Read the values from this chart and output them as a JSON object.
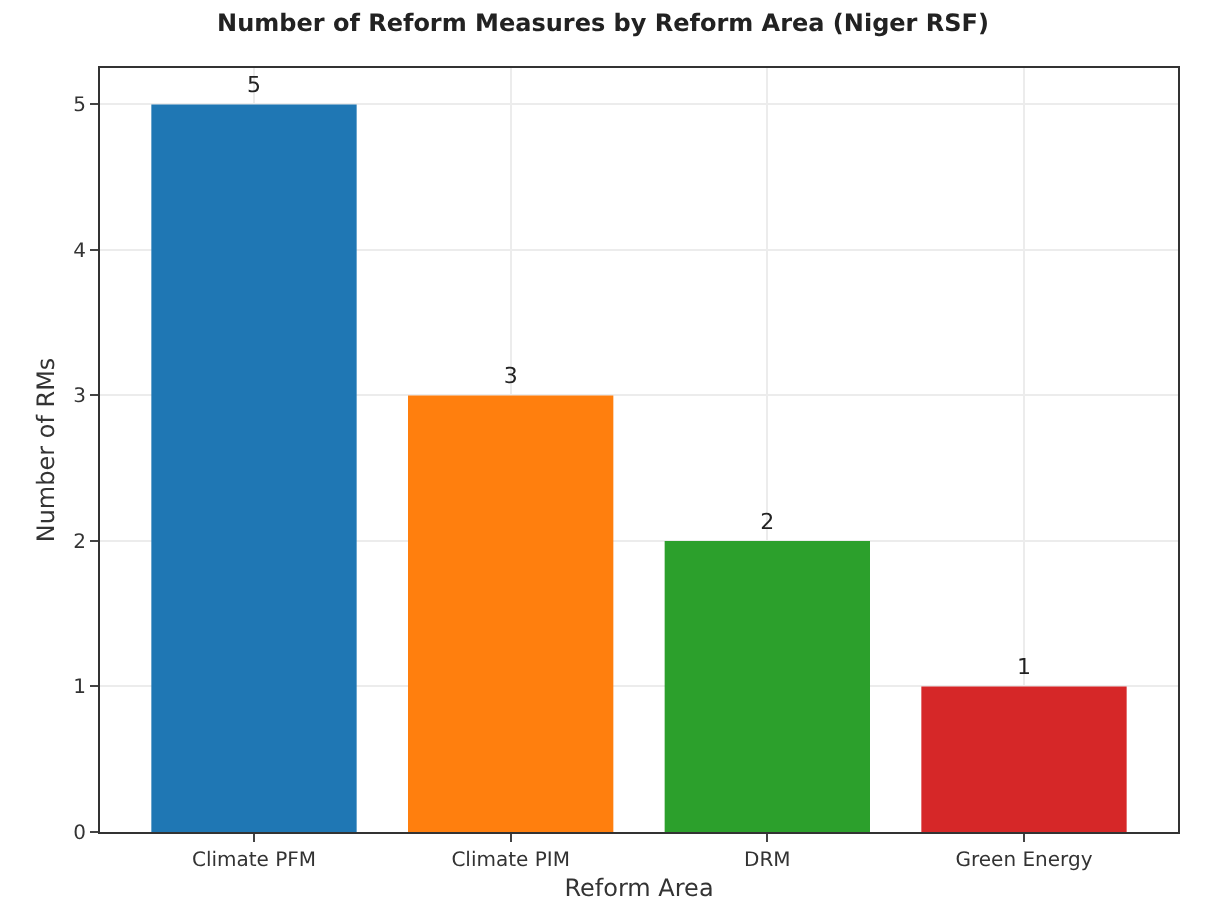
{
  "chart_data": {
    "type": "bar",
    "title": "Number of Reform Measures by Reform Area (Niger RSF)",
    "xlabel": "Reform Area",
    "ylabel": "Number of RMs",
    "categories": [
      "Climate PFM",
      "Climate PIM",
      "DRM",
      "Green Energy"
    ],
    "values": [
      5,
      3,
      2,
      1
    ],
    "colors": [
      "#1f77b4",
      "#ff7f0e",
      "#2ca02c",
      "#d62728"
    ],
    "ylim": [
      0,
      5.25
    ],
    "yticks": [
      0,
      1,
      2,
      3,
      4,
      5
    ],
    "grid": true,
    "data_labels": true
  }
}
